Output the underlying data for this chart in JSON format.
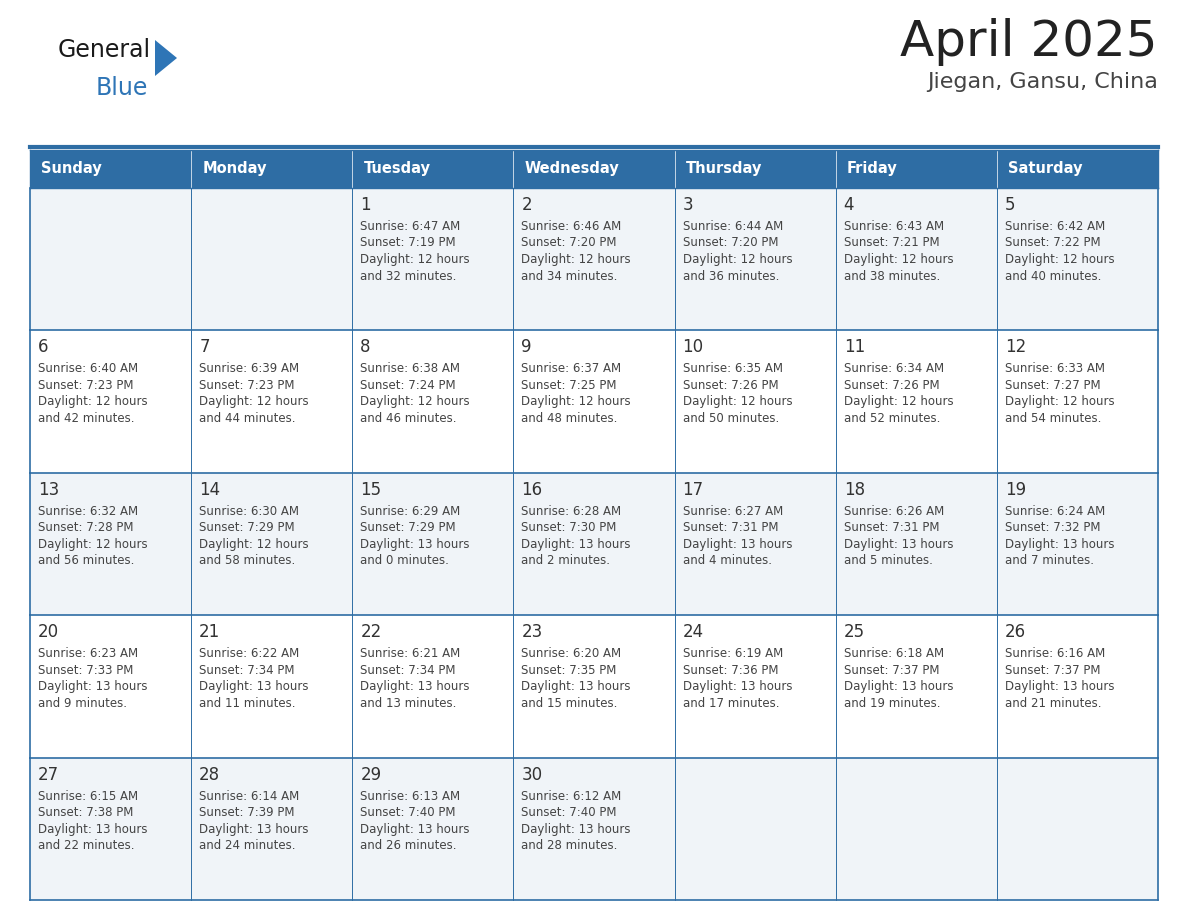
{
  "title": "April 2025",
  "subtitle": "Jiegan, Gansu, China",
  "days_of_week": [
    "Sunday",
    "Monday",
    "Tuesday",
    "Wednesday",
    "Thursday",
    "Friday",
    "Saturday"
  ],
  "header_bg": "#2E6DA4",
  "header_text": "#FFFFFF",
  "cell_bg_odd": "#F0F4F8",
  "cell_bg_even": "#FFFFFF",
  "border_color": "#2E6DA4",
  "text_color": "#444444",
  "day_num_color": "#333333",
  "title_color": "#222222",
  "subtitle_color": "#444444",
  "logo_general_color": "#1a1a1a",
  "logo_blue_color": "#2E75B6",
  "calendar_data": [
    [
      {
        "day": null,
        "sunrise": null,
        "sunset": null,
        "daylight_h": null,
        "daylight_m": null
      },
      {
        "day": null,
        "sunrise": null,
        "sunset": null,
        "daylight_h": null,
        "daylight_m": null
      },
      {
        "day": 1,
        "sunrise": "6:47 AM",
        "sunset": "7:19 PM",
        "daylight_h": "12 hours",
        "daylight_m": "and 32 minutes."
      },
      {
        "day": 2,
        "sunrise": "6:46 AM",
        "sunset": "7:20 PM",
        "daylight_h": "12 hours",
        "daylight_m": "and 34 minutes."
      },
      {
        "day": 3,
        "sunrise": "6:44 AM",
        "sunset": "7:20 PM",
        "daylight_h": "12 hours",
        "daylight_m": "and 36 minutes."
      },
      {
        "day": 4,
        "sunrise": "6:43 AM",
        "sunset": "7:21 PM",
        "daylight_h": "12 hours",
        "daylight_m": "and 38 minutes."
      },
      {
        "day": 5,
        "sunrise": "6:42 AM",
        "sunset": "7:22 PM",
        "daylight_h": "12 hours",
        "daylight_m": "and 40 minutes."
      }
    ],
    [
      {
        "day": 6,
        "sunrise": "6:40 AM",
        "sunset": "7:23 PM",
        "daylight_h": "12 hours",
        "daylight_m": "and 42 minutes."
      },
      {
        "day": 7,
        "sunrise": "6:39 AM",
        "sunset": "7:23 PM",
        "daylight_h": "12 hours",
        "daylight_m": "and 44 minutes."
      },
      {
        "day": 8,
        "sunrise": "6:38 AM",
        "sunset": "7:24 PM",
        "daylight_h": "12 hours",
        "daylight_m": "and 46 minutes."
      },
      {
        "day": 9,
        "sunrise": "6:37 AM",
        "sunset": "7:25 PM",
        "daylight_h": "12 hours",
        "daylight_m": "and 48 minutes."
      },
      {
        "day": 10,
        "sunrise": "6:35 AM",
        "sunset": "7:26 PM",
        "daylight_h": "12 hours",
        "daylight_m": "and 50 minutes."
      },
      {
        "day": 11,
        "sunrise": "6:34 AM",
        "sunset": "7:26 PM",
        "daylight_h": "12 hours",
        "daylight_m": "and 52 minutes."
      },
      {
        "day": 12,
        "sunrise": "6:33 AM",
        "sunset": "7:27 PM",
        "daylight_h": "12 hours",
        "daylight_m": "and 54 minutes."
      }
    ],
    [
      {
        "day": 13,
        "sunrise": "6:32 AM",
        "sunset": "7:28 PM",
        "daylight_h": "12 hours",
        "daylight_m": "and 56 minutes."
      },
      {
        "day": 14,
        "sunrise": "6:30 AM",
        "sunset": "7:29 PM",
        "daylight_h": "12 hours",
        "daylight_m": "and 58 minutes."
      },
      {
        "day": 15,
        "sunrise": "6:29 AM",
        "sunset": "7:29 PM",
        "daylight_h": "13 hours",
        "daylight_m": "and 0 minutes."
      },
      {
        "day": 16,
        "sunrise": "6:28 AM",
        "sunset": "7:30 PM",
        "daylight_h": "13 hours",
        "daylight_m": "and 2 minutes."
      },
      {
        "day": 17,
        "sunrise": "6:27 AM",
        "sunset": "7:31 PM",
        "daylight_h": "13 hours",
        "daylight_m": "and 4 minutes."
      },
      {
        "day": 18,
        "sunrise": "6:26 AM",
        "sunset": "7:31 PM",
        "daylight_h": "13 hours",
        "daylight_m": "and 5 minutes."
      },
      {
        "day": 19,
        "sunrise": "6:24 AM",
        "sunset": "7:32 PM",
        "daylight_h": "13 hours",
        "daylight_m": "and 7 minutes."
      }
    ],
    [
      {
        "day": 20,
        "sunrise": "6:23 AM",
        "sunset": "7:33 PM",
        "daylight_h": "13 hours",
        "daylight_m": "and 9 minutes."
      },
      {
        "day": 21,
        "sunrise": "6:22 AM",
        "sunset": "7:34 PM",
        "daylight_h": "13 hours",
        "daylight_m": "and 11 minutes."
      },
      {
        "day": 22,
        "sunrise": "6:21 AM",
        "sunset": "7:34 PM",
        "daylight_h": "13 hours",
        "daylight_m": "and 13 minutes."
      },
      {
        "day": 23,
        "sunrise": "6:20 AM",
        "sunset": "7:35 PM",
        "daylight_h": "13 hours",
        "daylight_m": "and 15 minutes."
      },
      {
        "day": 24,
        "sunrise": "6:19 AM",
        "sunset": "7:36 PM",
        "daylight_h": "13 hours",
        "daylight_m": "and 17 minutes."
      },
      {
        "day": 25,
        "sunrise": "6:18 AM",
        "sunset": "7:37 PM",
        "daylight_h": "13 hours",
        "daylight_m": "and 19 minutes."
      },
      {
        "day": 26,
        "sunrise": "6:16 AM",
        "sunset": "7:37 PM",
        "daylight_h": "13 hours",
        "daylight_m": "and 21 minutes."
      }
    ],
    [
      {
        "day": 27,
        "sunrise": "6:15 AM",
        "sunset": "7:38 PM",
        "daylight_h": "13 hours",
        "daylight_m": "and 22 minutes."
      },
      {
        "day": 28,
        "sunrise": "6:14 AM",
        "sunset": "7:39 PM",
        "daylight_h": "13 hours",
        "daylight_m": "and 24 minutes."
      },
      {
        "day": 29,
        "sunrise": "6:13 AM",
        "sunset": "7:40 PM",
        "daylight_h": "13 hours",
        "daylight_m": "and 26 minutes."
      },
      {
        "day": 30,
        "sunrise": "6:12 AM",
        "sunset": "7:40 PM",
        "daylight_h": "13 hours",
        "daylight_m": "and 28 minutes."
      },
      {
        "day": null,
        "sunrise": null,
        "sunset": null,
        "daylight_h": null,
        "daylight_m": null
      },
      {
        "day": null,
        "sunrise": null,
        "sunset": null,
        "daylight_h": null,
        "daylight_m": null
      },
      {
        "day": null,
        "sunrise": null,
        "sunset": null,
        "daylight_h": null,
        "daylight_m": null
      }
    ]
  ]
}
